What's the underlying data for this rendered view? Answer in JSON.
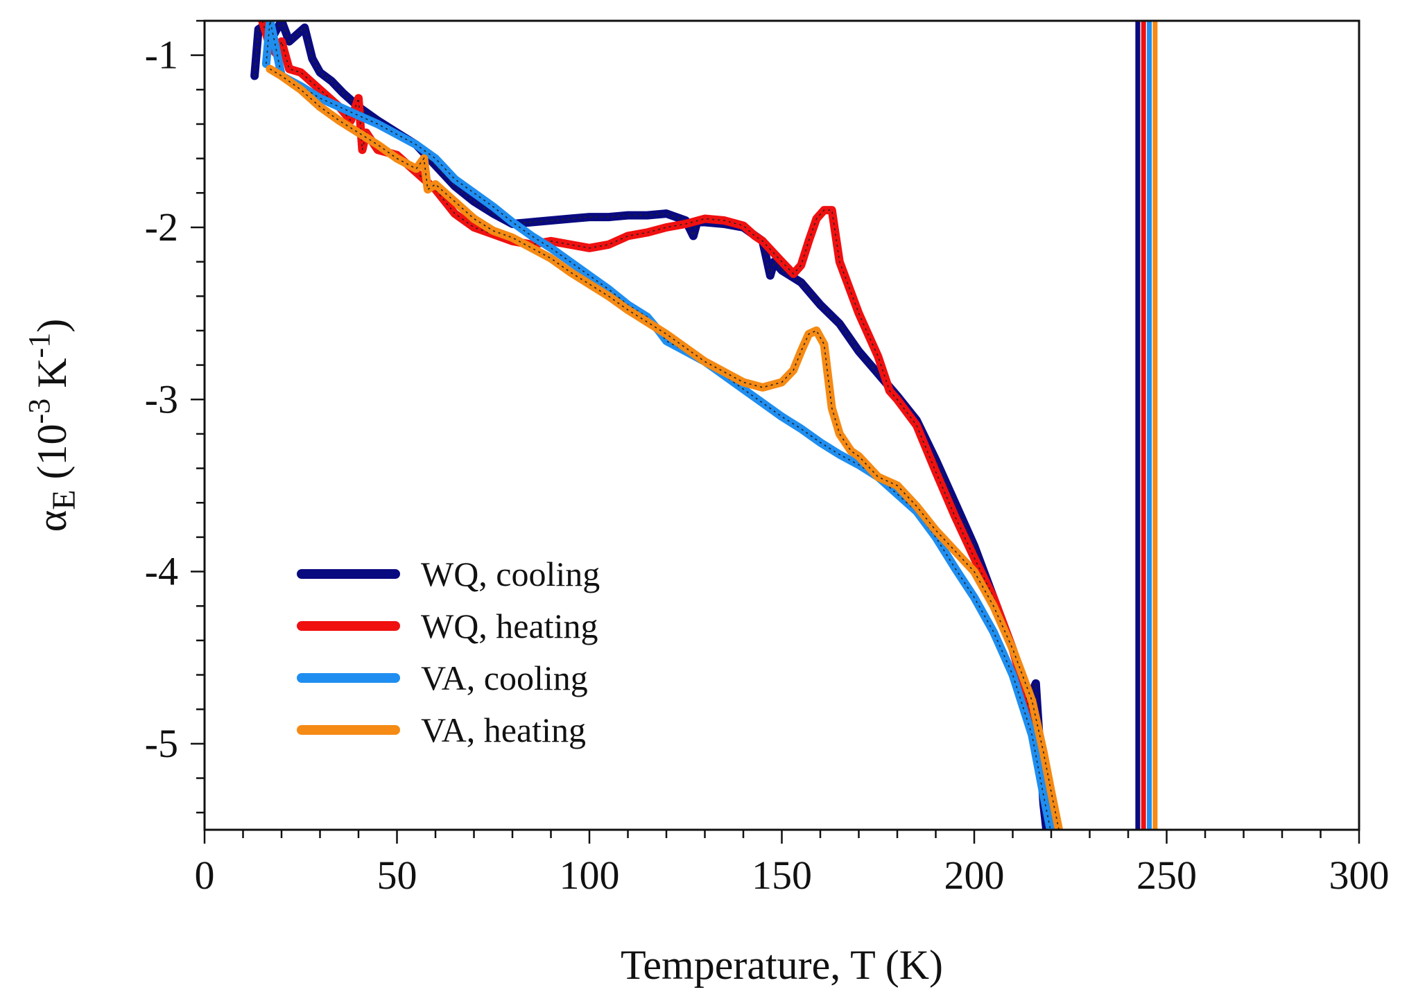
{
  "chart_data": {
    "type": "line",
    "title": "",
    "xlabel": "Temperature, T (K)",
    "ylabel": {
      "symbol": "α",
      "subscript": "E",
      "unit_prefix": " (10",
      "unit_exponent": "-3",
      "unit_mid": " K",
      "unit_exponent2": "-1",
      "unit_suffix": ")"
    },
    "xlim": [
      0,
      300
    ],
    "ylim": [
      -5.5,
      -0.8
    ],
    "x_ticks": [
      0,
      50,
      100,
      150,
      200,
      250,
      300
    ],
    "x_tick_labels": [
      "0",
      "50",
      "100",
      "150",
      "200",
      "250",
      "300"
    ],
    "x_minor_step": 10,
    "y_ticks": [
      -1,
      -2,
      -3,
      -4,
      -5
    ],
    "y_tick_labels": [
      "-1",
      "-2",
      "-3",
      "-4",
      "-5"
    ],
    "y_minor_step": 0.2,
    "grid": false,
    "legend_position": "lower-left",
    "series": [
      {
        "name": "WQ, cooling",
        "color": "#0a0a80",
        "points": [
          [
            13,
            -1.12
          ],
          [
            14,
            -0.85
          ],
          [
            16,
            -0.82
          ],
          [
            18,
            -0.88
          ],
          [
            20,
            -0.8
          ],
          [
            22,
            -0.92
          ],
          [
            24,
            -0.88
          ],
          [
            26,
            -0.84
          ],
          [
            28,
            -1.02
          ],
          [
            30,
            -1.1
          ],
          [
            33,
            -1.15
          ],
          [
            36,
            -1.22
          ],
          [
            40,
            -1.3
          ],
          [
            45,
            -1.38
          ],
          [
            50,
            -1.45
          ],
          [
            55,
            -1.52
          ],
          [
            60,
            -1.64
          ],
          [
            65,
            -1.76
          ],
          [
            70,
            -1.85
          ],
          [
            75,
            -1.92
          ],
          [
            80,
            -1.98
          ],
          [
            85,
            -1.97
          ],
          [
            90,
            -1.96
          ],
          [
            95,
            -1.95
          ],
          [
            100,
            -1.94
          ],
          [
            105,
            -1.94
          ],
          [
            110,
            -1.93
          ],
          [
            115,
            -1.93
          ],
          [
            120,
            -1.92
          ],
          [
            125,
            -1.96
          ],
          [
            127,
            -2.05
          ],
          [
            128,
            -1.97
          ],
          [
            130,
            -1.97
          ],
          [
            135,
            -1.98
          ],
          [
            140,
            -2.0
          ],
          [
            145,
            -2.08
          ],
          [
            147,
            -2.28
          ],
          [
            148,
            -2.2
          ],
          [
            150,
            -2.25
          ],
          [
            155,
            -2.32
          ],
          [
            160,
            -2.45
          ],
          [
            165,
            -2.56
          ],
          [
            170,
            -2.72
          ],
          [
            175,
            -2.85
          ],
          [
            180,
            -2.98
          ],
          [
            185,
            -3.12
          ],
          [
            190,
            -3.35
          ],
          [
            195,
            -3.6
          ],
          [
            200,
            -3.85
          ],
          [
            205,
            -4.15
          ],
          [
            210,
            -4.45
          ],
          [
            214,
            -4.75
          ],
          [
            216,
            -4.65
          ],
          [
            217,
            -5.0
          ],
          [
            218,
            -5.35
          ],
          [
            219,
            -5.55
          ]
        ]
      },
      {
        "name": "WQ, heating",
        "color": "#f01010",
        "points": [
          [
            15,
            -0.8
          ],
          [
            17,
            -0.95
          ],
          [
            19,
            -1.0
          ],
          [
            20,
            -0.92
          ],
          [
            22,
            -1.08
          ],
          [
            25,
            -1.1
          ],
          [
            30,
            -1.2
          ],
          [
            35,
            -1.3
          ],
          [
            38,
            -1.38
          ],
          [
            40,
            -1.25
          ],
          [
            41,
            -1.55
          ],
          [
            42,
            -1.45
          ],
          [
            45,
            -1.55
          ],
          [
            50,
            -1.58
          ],
          [
            55,
            -1.68
          ],
          [
            60,
            -1.78
          ],
          [
            65,
            -1.92
          ],
          [
            70,
            -2.0
          ],
          [
            75,
            -2.04
          ],
          [
            80,
            -2.08
          ],
          [
            85,
            -2.1
          ],
          [
            90,
            -2.08
          ],
          [
            95,
            -2.1
          ],
          [
            100,
            -2.12
          ],
          [
            105,
            -2.1
          ],
          [
            110,
            -2.05
          ],
          [
            115,
            -2.03
          ],
          [
            120,
            -2.0
          ],
          [
            125,
            -1.98
          ],
          [
            130,
            -1.95
          ],
          [
            135,
            -1.96
          ],
          [
            140,
            -1.99
          ],
          [
            143,
            -2.05
          ],
          [
            145,
            -2.08
          ],
          [
            150,
            -2.2
          ],
          [
            153,
            -2.27
          ],
          [
            155,
            -2.22
          ],
          [
            157,
            -2.08
          ],
          [
            159,
            -1.95
          ],
          [
            161,
            -1.9
          ],
          [
            163,
            -1.9
          ],
          [
            165,
            -2.2
          ],
          [
            170,
            -2.5
          ],
          [
            175,
            -2.75
          ],
          [
            178,
            -2.95
          ],
          [
            180,
            -3.0
          ],
          [
            185,
            -3.15
          ],
          [
            190,
            -3.42
          ],
          [
            195,
            -3.68
          ],
          [
            200,
            -3.92
          ],
          [
            205,
            -4.15
          ],
          [
            210,
            -4.45
          ],
          [
            215,
            -4.85
          ],
          [
            218,
            -5.25
          ],
          [
            220,
            -5.5
          ]
        ]
      },
      {
        "name": "VA, cooling",
        "color": "#1f8ef0",
        "points": [
          [
            16,
            -1.05
          ],
          [
            17,
            -0.8
          ],
          [
            18,
            -0.9
          ],
          [
            20,
            -1.12
          ],
          [
            25,
            -1.18
          ],
          [
            30,
            -1.25
          ],
          [
            35,
            -1.3
          ],
          [
            40,
            -1.35
          ],
          [
            45,
            -1.4
          ],
          [
            50,
            -1.46
          ],
          [
            55,
            -1.52
          ],
          [
            60,
            -1.6
          ],
          [
            65,
            -1.72
          ],
          [
            70,
            -1.8
          ],
          [
            75,
            -1.88
          ],
          [
            80,
            -1.97
          ],
          [
            85,
            -2.05
          ],
          [
            90,
            -2.12
          ],
          [
            95,
            -2.2
          ],
          [
            100,
            -2.28
          ],
          [
            105,
            -2.36
          ],
          [
            110,
            -2.45
          ],
          [
            115,
            -2.52
          ],
          [
            118,
            -2.6
          ],
          [
            120,
            -2.66
          ],
          [
            125,
            -2.72
          ],
          [
            130,
            -2.78
          ],
          [
            135,
            -2.86
          ],
          [
            140,
            -2.94
          ],
          [
            145,
            -3.02
          ],
          [
            150,
            -3.1
          ],
          [
            155,
            -3.17
          ],
          [
            160,
            -3.25
          ],
          [
            165,
            -3.32
          ],
          [
            170,
            -3.38
          ],
          [
            175,
            -3.45
          ],
          [
            180,
            -3.55
          ],
          [
            185,
            -3.65
          ],
          [
            190,
            -3.8
          ],
          [
            195,
            -3.98
          ],
          [
            200,
            -4.15
          ],
          [
            205,
            -4.35
          ],
          [
            210,
            -4.6
          ],
          [
            215,
            -4.95
          ],
          [
            218,
            -5.3
          ],
          [
            220,
            -5.52
          ]
        ]
      },
      {
        "name": "VA, heating",
        "color": "#f58a14",
        "points": [
          [
            17,
            -1.08
          ],
          [
            20,
            -1.12
          ],
          [
            25,
            -1.2
          ],
          [
            30,
            -1.3
          ],
          [
            35,
            -1.38
          ],
          [
            40,
            -1.45
          ],
          [
            45,
            -1.52
          ],
          [
            50,
            -1.6
          ],
          [
            55,
            -1.66
          ],
          [
            57,
            -1.6
          ],
          [
            58,
            -1.78
          ],
          [
            60,
            -1.75
          ],
          [
            65,
            -1.85
          ],
          [
            70,
            -1.95
          ],
          [
            75,
            -2.02
          ],
          [
            80,
            -2.06
          ],
          [
            85,
            -2.12
          ],
          [
            90,
            -2.18
          ],
          [
            95,
            -2.26
          ],
          [
            100,
            -2.33
          ],
          [
            105,
            -2.4
          ],
          [
            110,
            -2.48
          ],
          [
            115,
            -2.55
          ],
          [
            120,
            -2.62
          ],
          [
            125,
            -2.7
          ],
          [
            130,
            -2.78
          ],
          [
            135,
            -2.84
          ],
          [
            140,
            -2.9
          ],
          [
            145,
            -2.93
          ],
          [
            150,
            -2.9
          ],
          [
            153,
            -2.83
          ],
          [
            155,
            -2.72
          ],
          [
            157,
            -2.62
          ],
          [
            159,
            -2.6
          ],
          [
            161,
            -2.68
          ],
          [
            163,
            -3.05
          ],
          [
            165,
            -3.2
          ],
          [
            168,
            -3.3
          ],
          [
            170,
            -3.33
          ],
          [
            175,
            -3.45
          ],
          [
            180,
            -3.5
          ],
          [
            185,
            -3.62
          ],
          [
            190,
            -3.76
          ],
          [
            195,
            -3.88
          ],
          [
            200,
            -4.0
          ],
          [
            205,
            -4.2
          ],
          [
            210,
            -4.45
          ],
          [
            215,
            -4.75
          ],
          [
            218,
            -5.05
          ],
          [
            220,
            -5.28
          ],
          [
            222,
            -5.5
          ]
        ]
      }
    ],
    "vertical_lines": [
      {
        "x": 242.5,
        "color": "#0a0a80"
      },
      {
        "x": 244,
        "color": "#f01010"
      },
      {
        "x": 245.5,
        "color": "#1f8ef0"
      },
      {
        "x": 247,
        "color": "#f58a14"
      }
    ]
  }
}
